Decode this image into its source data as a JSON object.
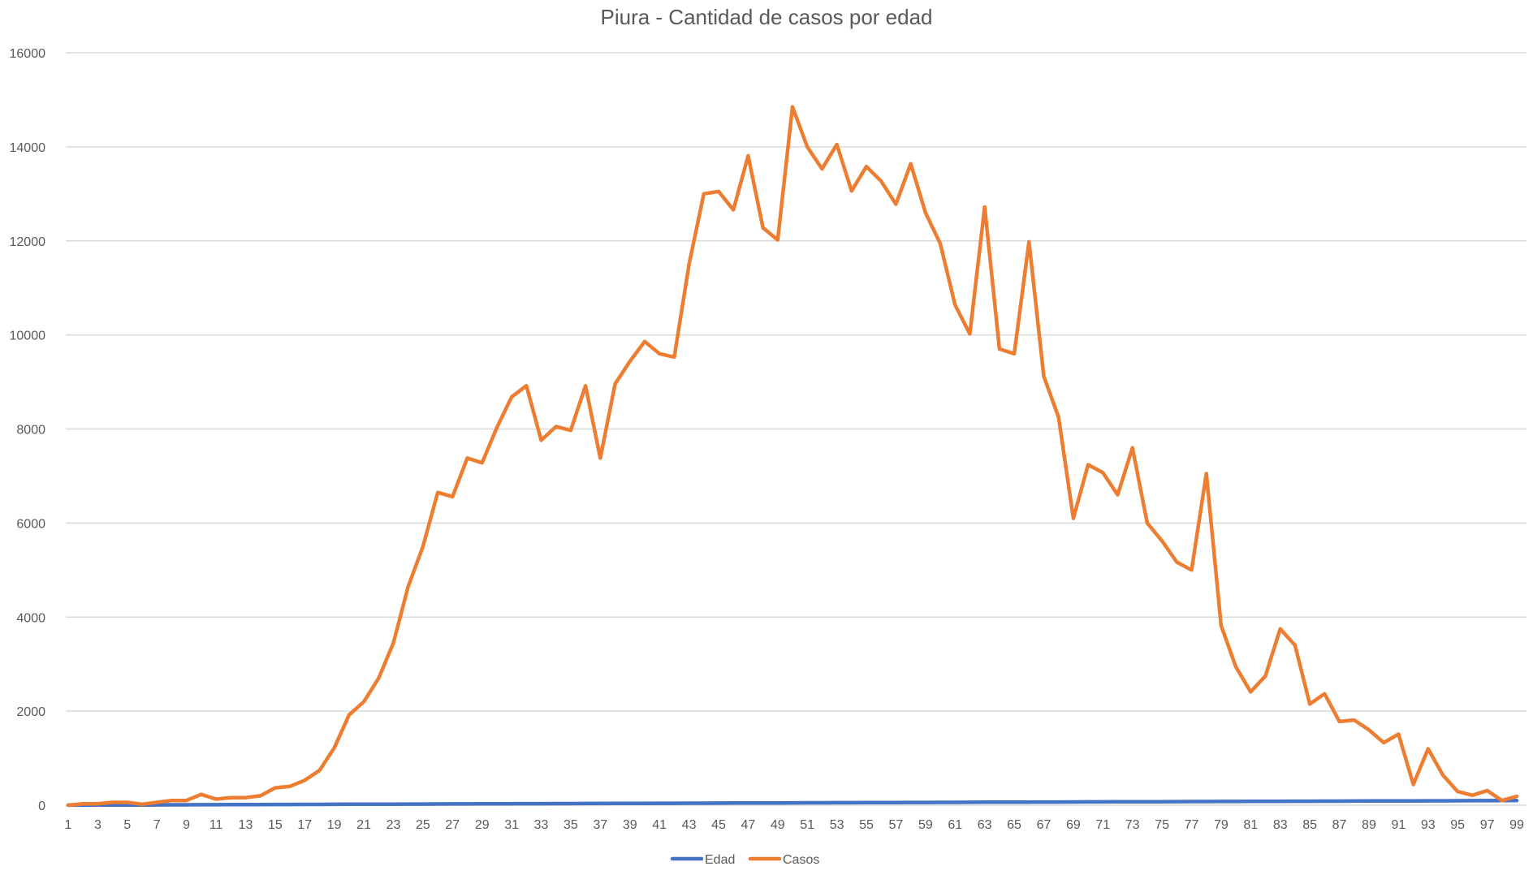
{
  "chart_data": {
    "type": "line",
    "title": "Piura - Cantidad de casos por edad",
    "xlabel": "",
    "ylabel": "",
    "grid": true,
    "legend_position": "bottom",
    "ylim": [
      0,
      16000
    ],
    "y_ticks": [
      "0",
      "2000",
      "4000",
      "6000",
      "8000",
      "10000",
      "12000",
      "14000",
      "16000"
    ],
    "x": [
      1,
      2,
      3,
      4,
      5,
      6,
      7,
      8,
      9,
      10,
      11,
      12,
      13,
      14,
      15,
      16,
      17,
      18,
      19,
      20,
      21,
      22,
      23,
      24,
      25,
      26,
      27,
      28,
      29,
      30,
      31,
      32,
      33,
      34,
      35,
      36,
      37,
      38,
      39,
      40,
      41,
      42,
      43,
      44,
      45,
      46,
      47,
      48,
      49,
      50,
      51,
      52,
      53,
      54,
      55,
      56,
      57,
      58,
      59,
      60,
      61,
      62,
      63,
      64,
      65,
      66,
      67,
      68,
      69,
      70,
      71,
      72,
      73,
      74,
      75,
      76,
      77,
      78,
      79,
      80,
      81,
      82,
      83,
      84,
      85,
      86,
      87,
      88,
      89,
      90,
      91,
      92,
      93,
      94,
      95,
      96,
      97,
      98,
      99
    ],
    "x_tick_labels": [
      "1",
      "3",
      "5",
      "7",
      "9",
      "11",
      "13",
      "15",
      "17",
      "19",
      "21",
      "23",
      "25",
      "27",
      "29",
      "31",
      "33",
      "35",
      "37",
      "39",
      "41",
      "43",
      "45",
      "47",
      "49",
      "51",
      "53",
      "55",
      "57",
      "59",
      "61",
      "63",
      "65",
      "67",
      "69",
      "71",
      "73",
      "75",
      "77",
      "79",
      "81",
      "83",
      "85",
      "87",
      "89",
      "91",
      "93",
      "95",
      "97",
      "99"
    ],
    "series": [
      {
        "name": "Edad",
        "color": "#4472c4",
        "values": [
          1,
          2,
          3,
          4,
          5,
          6,
          7,
          8,
          9,
          10,
          11,
          12,
          13,
          14,
          15,
          16,
          17,
          18,
          19,
          20,
          21,
          22,
          23,
          24,
          25,
          26,
          27,
          28,
          29,
          30,
          31,
          32,
          33,
          34,
          35,
          36,
          37,
          38,
          39,
          40,
          41,
          42,
          43,
          44,
          45,
          46,
          47,
          48,
          49,
          50,
          51,
          52,
          53,
          54,
          55,
          56,
          57,
          58,
          59,
          60,
          61,
          62,
          63,
          64,
          65,
          66,
          67,
          68,
          69,
          70,
          71,
          72,
          73,
          74,
          75,
          76,
          77,
          78,
          79,
          80,
          81,
          82,
          83,
          84,
          85,
          86,
          87,
          88,
          89,
          90,
          91,
          92,
          93,
          94,
          95,
          96,
          97,
          98,
          99
        ]
      },
      {
        "name": "Casos",
        "color": "#ed7d31",
        "values": [
          0,
          30,
          30,
          60,
          60,
          20,
          60,
          100,
          100,
          230,
          130,
          160,
          160,
          200,
          370,
          400,
          530,
          740,
          1220,
          1920,
          2200,
          2700,
          3450,
          4650,
          5500,
          6650,
          6560,
          7380,
          7280,
          8030,
          8680,
          8920,
          7760,
          8050,
          7970,
          8920,
          7380,
          8960,
          9440,
          9860,
          9600,
          9530,
          11500,
          13000,
          13050,
          12660,
          13810,
          12280,
          12020,
          14850,
          14000,
          13530,
          14050,
          13060,
          13580,
          13270,
          12780,
          13640,
          12600,
          11940,
          10640,
          10020,
          12720,
          9700,
          9600,
          11980,
          9120,
          8250,
          6100,
          7240,
          7070,
          6600,
          7600,
          6000,
          5620,
          5170,
          5000,
          7050,
          3820,
          2940,
          2410,
          2750,
          3750,
          3400,
          2150,
          2370,
          1780,
          1810,
          1600,
          1330,
          1510,
          440,
          1200,
          640,
          290,
          210,
          310,
          100,
          190
        ]
      }
    ]
  }
}
